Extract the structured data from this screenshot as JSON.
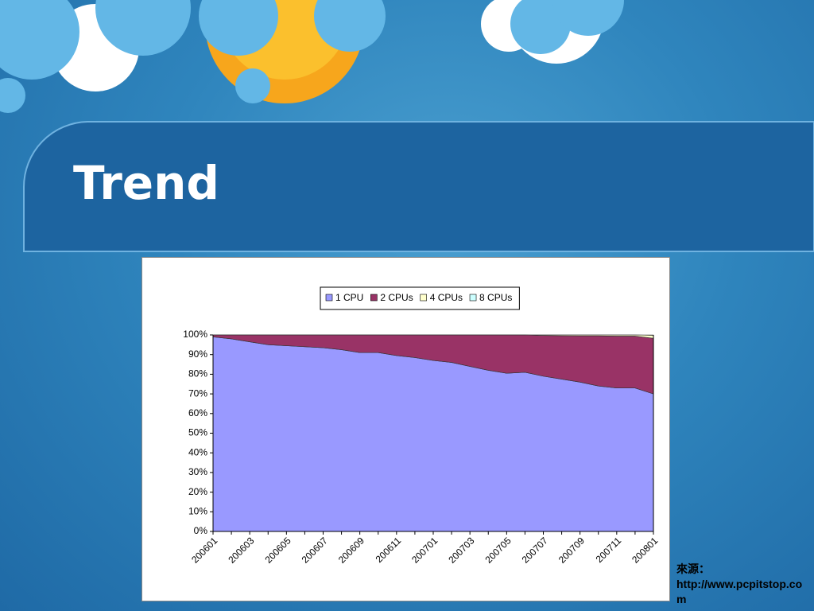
{
  "title": "Trend",
  "chart_data": {
    "type": "stacked-area",
    "categories": [
      "200601",
      null,
      "200603",
      null,
      "200605",
      null,
      "200607",
      null,
      "200609",
      null,
      "200611",
      null,
      "200701",
      null,
      "200703",
      null,
      "200705",
      null,
      "200707",
      null,
      "200709",
      null,
      "200711",
      null,
      "200801"
    ],
    "series": [
      {
        "name": "1 CPU",
        "color": "#9999ff",
        "values": [
          99,
          98,
          96.5,
          95,
          94.5,
          94,
          93.5,
          92.5,
          91,
          91,
          89.5,
          88.5,
          87,
          86,
          84,
          82,
          80.5,
          81,
          79,
          77.5,
          76,
          74,
          73,
          73,
          70
        ]
      },
      {
        "name": "2 CPUs",
        "color": "#993366",
        "values": [
          1,
          2,
          3.5,
          5,
          5.5,
          6,
          6.5,
          7.5,
          9,
          9,
          10.5,
          11.5,
          13,
          14,
          16,
          18,
          19.5,
          19,
          20.7,
          22.1,
          23.5,
          25.5,
          26.4,
          26.4,
          28.3
        ]
      },
      {
        "name": "4 CPUs",
        "color": "#ffffcc",
        "values": [
          0,
          0,
          0,
          0,
          0,
          0,
          0,
          0,
          0,
          0,
          0,
          0,
          0,
          0,
          0,
          0,
          0,
          0,
          0.3,
          0.4,
          0.5,
          0.5,
          0.6,
          0.6,
          1.5
        ]
      },
      {
        "name": "8 CPUs",
        "color": "#ccffff",
        "values": [
          0,
          0,
          0,
          0,
          0,
          0,
          0,
          0,
          0,
          0,
          0,
          0,
          0,
          0,
          0,
          0,
          0,
          0,
          0,
          0,
          0,
          0,
          0,
          0,
          0.2
        ]
      }
    ],
    "ylim": [
      0,
      100
    ],
    "yticks": [
      {
        "value": 0,
        "label": "0%"
      },
      {
        "value": 10,
        "label": "10%"
      },
      {
        "value": 20,
        "label": "20%"
      },
      {
        "value": 30,
        "label": "30%"
      },
      {
        "value": 40,
        "label": "40%"
      },
      {
        "value": 50,
        "label": "50%"
      },
      {
        "value": 60,
        "label": "60%"
      },
      {
        "value": 70,
        "label": "70%"
      },
      {
        "value": 80,
        "label": "80%"
      },
      {
        "value": 90,
        "label": "90%"
      },
      {
        "value": 100,
        "label": "100%"
      }
    ],
    "legend": "top"
  },
  "source": {
    "label": "來源：",
    "url": "http://www.pcpitstop.com"
  }
}
